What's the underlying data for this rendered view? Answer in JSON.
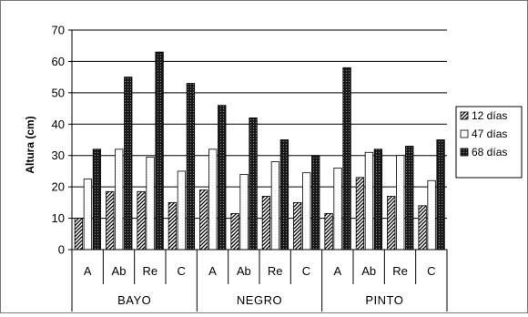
{
  "chart_data": {
    "type": "bar",
    "ylabel": "Altura (cm)",
    "ylim": [
      0,
      70
    ],
    "yticks": [
      0,
      10,
      20,
      30,
      40,
      50,
      60,
      70
    ],
    "grid": "horizontal",
    "legend_position": "right",
    "groups": [
      {
        "label": "BAYO",
        "categories": [
          "A",
          "Ab",
          "Re",
          "C"
        ]
      },
      {
        "label": "NEGRO",
        "categories": [
          "A",
          "Ab",
          "Re",
          "C"
        ]
      },
      {
        "label": "PINTO",
        "categories": [
          "A",
          "Ab",
          "Re",
          "C"
        ]
      }
    ],
    "series": [
      {
        "name": "12 días",
        "pattern": "diagonal-hatch",
        "values": [
          10,
          18.5,
          18.5,
          15,
          19,
          11.5,
          17,
          15,
          11.5,
          23,
          17,
          14
        ]
      },
      {
        "name": "47 días",
        "pattern": "white",
        "values": [
          22.5,
          32,
          29.5,
          25,
          32,
          24,
          28,
          24.5,
          26,
          31,
          30,
          22
        ]
      },
      {
        "name": "68 días",
        "pattern": "dark-dotted",
        "values": [
          32,
          55,
          63,
          53,
          46,
          42,
          35,
          30,
          58,
          32,
          33,
          35
        ]
      }
    ],
    "colors": {
      "grid": "#000000",
      "frame": "#7a7a7a",
      "dark_bar": "#1a1a1a"
    }
  }
}
